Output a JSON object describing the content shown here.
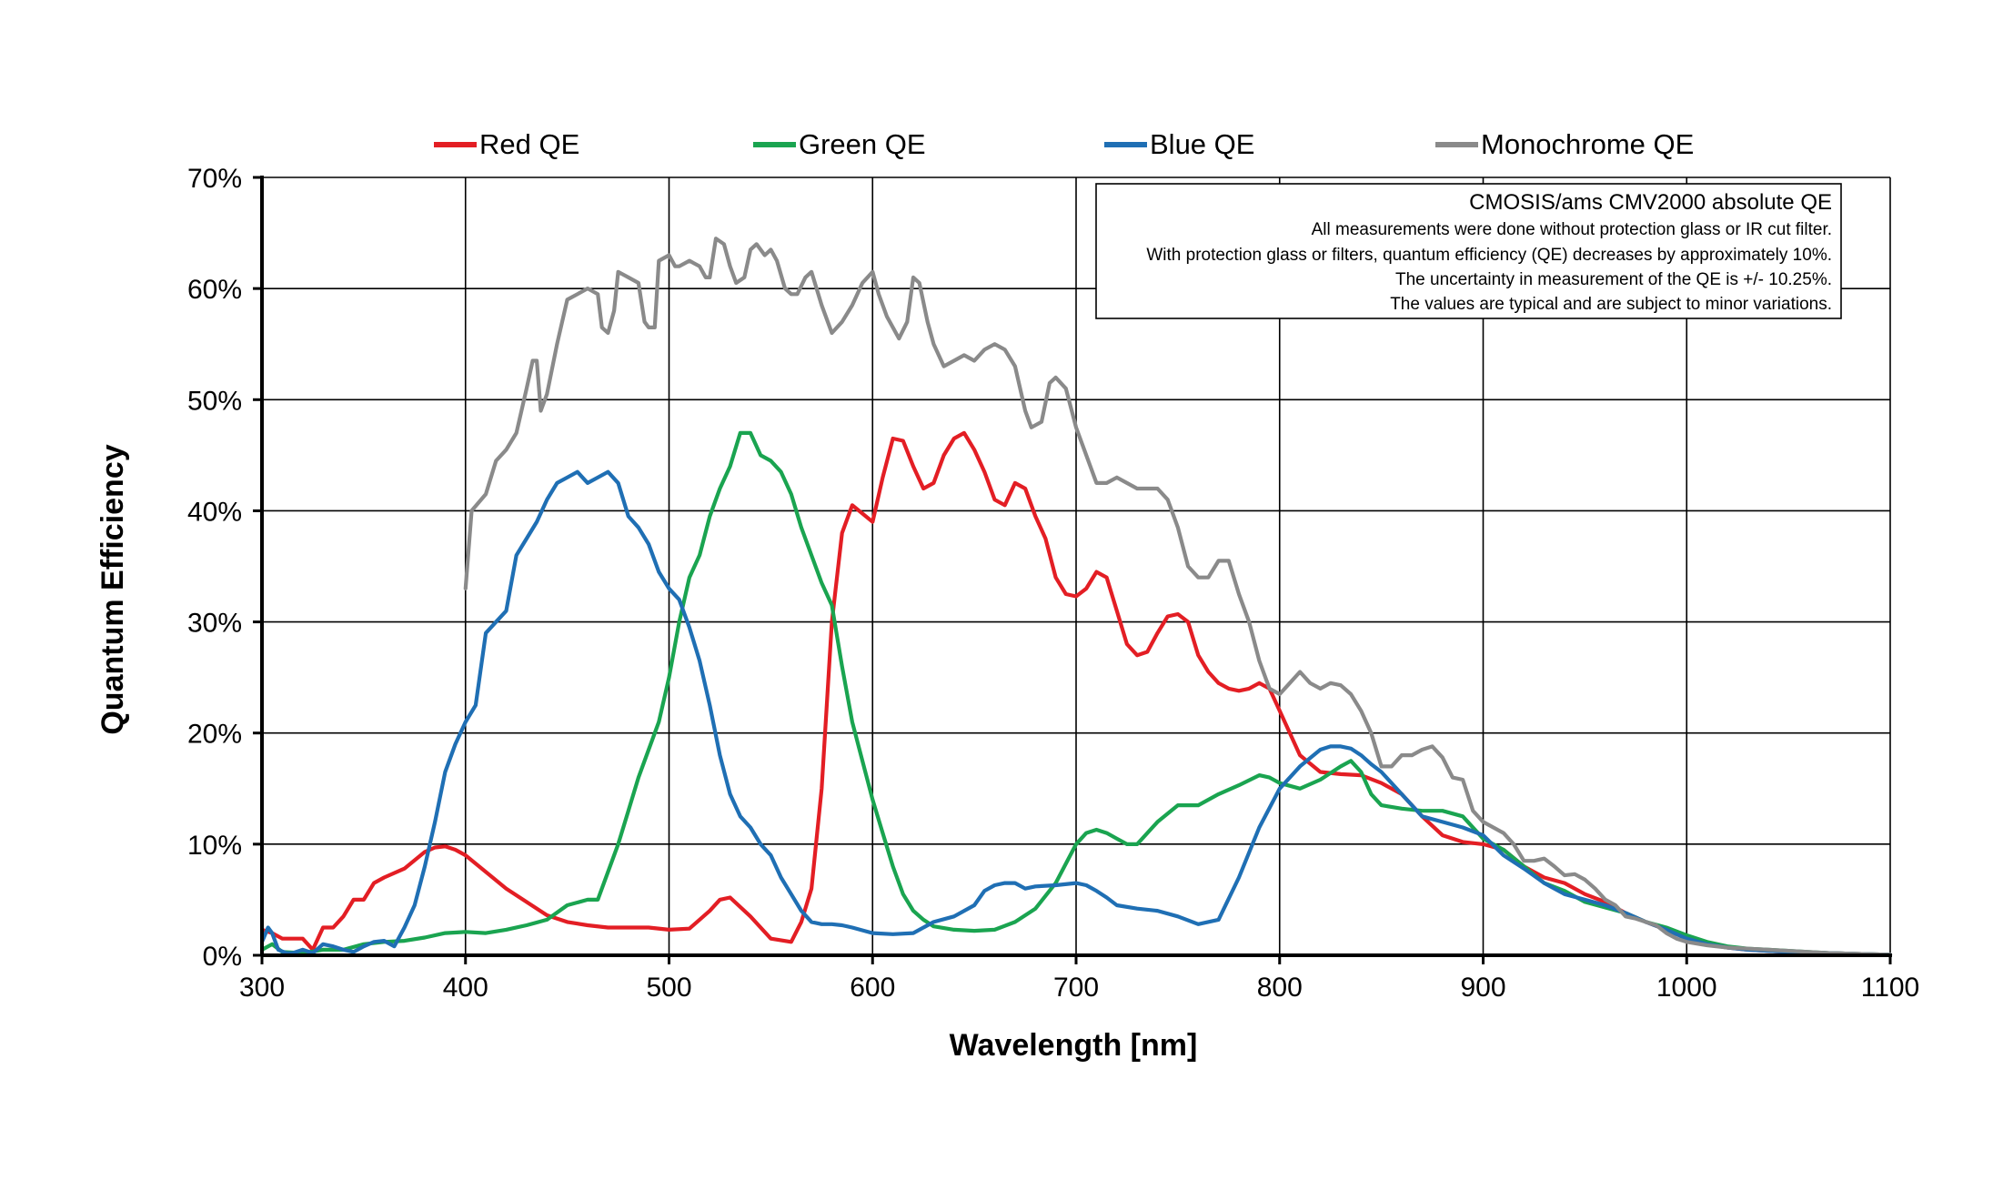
{
  "chart_data": {
    "type": "line",
    "title": "",
    "xlabel": "Wavelength [nm]",
    "ylabel": "Quantum Efficiency",
    "xlim": [
      300,
      1100
    ],
    "ylim": [
      0,
      70
    ],
    "x_ticks": [
      300,
      400,
      500,
      600,
      700,
      800,
      900,
      1000,
      1100
    ],
    "x_tick_labels": [
      "300",
      "400",
      "500",
      "600",
      "700",
      "800",
      "900",
      "1000",
      "1100"
    ],
    "y_ticks": [
      0,
      10,
      20,
      30,
      40,
      50,
      60,
      70
    ],
    "y_tick_labels": [
      "0%",
      "10%",
      "20%",
      "30%",
      "40%",
      "50%",
      "60%",
      "70%"
    ],
    "grid": true,
    "legend_position": "top",
    "annotation": {
      "title": "CMOSIS/ams CMV2000 absolute QE",
      "lines": [
        "All measurements were done without protection glass or IR cut filter.",
        "With protection glass or filters, quantum efficiency (QE) decreases by approximately 10%.",
        "The uncertainty in measurement of the QE is +/- 10.25%.",
        "The values are typical and are subject to minor variations."
      ]
    },
    "series": [
      {
        "name": "Red QE",
        "color": "#e31e24",
        "x": [
          300,
          305,
          310,
          320,
          325,
          330,
          335,
          340,
          345,
          350,
          355,
          360,
          370,
          380,
          385,
          390,
          395,
          400,
          410,
          420,
          430,
          440,
          450,
          460,
          470,
          480,
          490,
          500,
          510,
          520,
          525,
          530,
          540,
          550,
          560,
          565,
          570,
          575,
          580,
          585,
          590,
          600,
          605,
          610,
          615,
          620,
          625,
          630,
          635,
          640,
          645,
          650,
          655,
          660,
          665,
          670,
          675,
          680,
          685,
          690,
          695,
          700,
          705,
          710,
          715,
          720,
          725,
          730,
          735,
          740,
          745,
          750,
          755,
          760,
          765,
          770,
          775,
          780,
          785,
          790,
          795,
          800,
          810,
          820,
          830,
          840,
          850,
          860,
          870,
          880,
          890,
          900,
          910,
          920,
          930,
          940,
          950,
          960,
          970,
          980,
          990,
          1000,
          1010,
          1020,
          1030,
          1040,
          1050,
          1060,
          1070,
          1080,
          1090,
          1100
        ],
        "values": [
          2.3,
          2.0,
          1.5,
          1.5,
          0.5,
          2.5,
          2.5,
          3.5,
          5.0,
          5.0,
          6.5,
          7.0,
          7.8,
          9.3,
          9.7,
          9.8,
          9.5,
          9.0,
          7.5,
          6.0,
          4.8,
          3.6,
          3.0,
          2.7,
          2.5,
          2.5,
          2.5,
          2.3,
          2.4,
          4.0,
          5.0,
          5.2,
          3.5,
          1.5,
          1.2,
          3.0,
          6.0,
          15.0,
          30.0,
          38.0,
          40.5,
          39.0,
          43.0,
          46.5,
          46.3,
          44.0,
          42.0,
          42.5,
          45.0,
          46.5,
          47.0,
          45.5,
          43.5,
          41.0,
          40.5,
          42.5,
          42.0,
          39.5,
          37.5,
          34.0,
          32.5,
          32.3,
          33.0,
          34.5,
          34.0,
          31.0,
          28.0,
          27.0,
          27.3,
          29.0,
          30.5,
          30.7,
          30.0,
          27.0,
          25.5,
          24.5,
          24.0,
          23.8,
          24.0,
          24.5,
          24.0,
          22.0,
          18.0,
          16.5,
          16.3,
          16.2,
          15.5,
          14.5,
          12.5,
          10.8,
          10.2,
          10.0,
          9.5,
          8.0,
          7.0,
          6.5,
          5.5,
          4.8,
          3.8,
          3.0,
          2.3,
          1.5,
          1.0,
          0.7,
          0.5,
          0.4,
          0.3,
          0.25,
          0.2,
          0.15,
          0.1,
          0.05
        ]
      },
      {
        "name": "Green QE",
        "color": "#1aa450",
        "x": [
          300,
          305,
          310,
          320,
          330,
          340,
          350,
          360,
          370,
          380,
          390,
          400,
          410,
          420,
          430,
          440,
          450,
          460,
          465,
          470,
          475,
          480,
          485,
          490,
          495,
          500,
          505,
          510,
          515,
          520,
          525,
          530,
          535,
          540,
          545,
          550,
          555,
          560,
          565,
          570,
          575,
          580,
          585,
          590,
          595,
          600,
          605,
          610,
          615,
          620,
          625,
          630,
          640,
          650,
          660,
          670,
          680,
          690,
          700,
          705,
          710,
          715,
          720,
          725,
          730,
          740,
          750,
          760,
          770,
          780,
          790,
          795,
          800,
          810,
          820,
          830,
          835,
          840,
          845,
          850,
          860,
          870,
          880,
          890,
          900,
          910,
          920,
          930,
          940,
          950,
          960,
          970,
          980,
          990,
          1000,
          1010,
          1020,
          1030,
          1040,
          1050,
          1060,
          1070,
          1080,
          1090,
          1100
        ],
        "values": [
          0.5,
          1.0,
          0.3,
          0.2,
          0.5,
          0.5,
          1.0,
          1.2,
          1.3,
          1.6,
          2.0,
          2.1,
          2.0,
          2.3,
          2.7,
          3.2,
          4.5,
          5.0,
          5.0,
          7.5,
          10.0,
          13.0,
          16.0,
          18.5,
          21.0,
          25.0,
          30.0,
          34.0,
          36.0,
          39.5,
          42.0,
          44.0,
          47.0,
          47.0,
          45.0,
          44.5,
          43.5,
          41.5,
          38.5,
          36.0,
          33.5,
          31.5,
          26.0,
          21.0,
          17.5,
          14.0,
          11.0,
          8.0,
          5.5,
          4.0,
          3.2,
          2.6,
          2.3,
          2.2,
          2.3,
          3.0,
          4.2,
          6.5,
          10.0,
          11.0,
          11.3,
          11.0,
          10.5,
          10.0,
          10.0,
          12.0,
          13.5,
          13.5,
          14.5,
          15.3,
          16.2,
          16.0,
          15.5,
          15.0,
          15.8,
          17.0,
          17.5,
          16.5,
          14.5,
          13.5,
          13.2,
          13.0,
          13.0,
          12.5,
          10.5,
          9.5,
          8.0,
          6.5,
          5.8,
          4.8,
          4.3,
          3.8,
          3.0,
          2.5,
          1.8,
          1.2,
          0.8,
          0.6,
          0.5,
          0.4,
          0.3,
          0.2,
          0.15,
          0.1,
          0.05
        ]
      },
      {
        "name": "Blue QE",
        "color": "#1f6fb4",
        "x": [
          300,
          303,
          305,
          308,
          312,
          315,
          320,
          325,
          330,
          335,
          340,
          345,
          350,
          355,
          360,
          365,
          370,
          375,
          380,
          385,
          390,
          395,
          400,
          405,
          410,
          415,
          420,
          425,
          430,
          435,
          440,
          445,
          450,
          455,
          460,
          465,
          470,
          475,
          480,
          485,
          490,
          495,
          500,
          505,
          510,
          515,
          520,
          525,
          530,
          535,
          540,
          545,
          550,
          555,
          560,
          565,
          570,
          575,
          580,
          585,
          590,
          600,
          610,
          620,
          630,
          640,
          650,
          655,
          660,
          665,
          670,
          675,
          680,
          690,
          700,
          705,
          710,
          715,
          720,
          730,
          740,
          750,
          760,
          770,
          780,
          790,
          800,
          810,
          820,
          825,
          830,
          835,
          840,
          845,
          850,
          860,
          870,
          880,
          890,
          900,
          910,
          920,
          930,
          940,
          950,
          960,
          970,
          980,
          990,
          1000,
          1010,
          1020,
          1030,
          1040,
          1050,
          1060,
          1070,
          1080,
          1090,
          1100
        ],
        "values": [
          1.2,
          2.5,
          2.0,
          0.5,
          0.2,
          0.2,
          0.5,
          0.2,
          1.0,
          0.8,
          0.5,
          0.3,
          0.8,
          1.2,
          1.3,
          0.8,
          2.5,
          4.5,
          8.0,
          12.0,
          16.5,
          19.0,
          21.0,
          22.5,
          29.0,
          30.0,
          31.0,
          36.0,
          37.5,
          39.0,
          41.0,
          42.5,
          43.0,
          43.5,
          42.5,
          43.0,
          43.5,
          42.5,
          39.5,
          38.5,
          37.0,
          34.5,
          33.0,
          32.0,
          29.5,
          26.5,
          22.5,
          18.0,
          14.5,
          12.5,
          11.5,
          10.0,
          9.0,
          7.0,
          5.5,
          4.0,
          3.0,
          2.8,
          2.8,
          2.7,
          2.5,
          2.0,
          1.9,
          2.0,
          3.0,
          3.5,
          4.5,
          5.8,
          6.3,
          6.5,
          6.5,
          6.0,
          6.2,
          6.3,
          6.5,
          6.3,
          5.8,
          5.2,
          4.5,
          4.2,
          4.0,
          3.5,
          2.8,
          3.2,
          7.0,
          11.5,
          15.0,
          17.0,
          18.5,
          18.8,
          18.8,
          18.6,
          18.0,
          17.2,
          16.5,
          14.5,
          12.5,
          12.0,
          11.5,
          10.8,
          9.0,
          7.8,
          6.5,
          5.5,
          5.0,
          4.5,
          3.8,
          3.0,
          2.3,
          1.5,
          1.0,
          0.7,
          0.5,
          0.4,
          0.3,
          0.25,
          0.2,
          0.15,
          0.1,
          0.05
        ]
      },
      {
        "name": "Monochrome QE",
        "color": "#8a8a8a",
        "x": [
          400,
          403,
          410,
          415,
          420,
          425,
          430,
          433,
          435,
          437,
          440,
          445,
          450,
          455,
          460,
          465,
          467,
          470,
          473,
          475,
          480,
          485,
          488,
          490,
          493,
          495,
          500,
          503,
          505,
          510,
          515,
          518,
          520,
          523,
          527,
          530,
          533,
          537,
          540,
          543,
          547,
          550,
          553,
          557,
          560,
          563,
          567,
          570,
          575,
          580,
          585,
          590,
          595,
          600,
          603,
          607,
          610,
          613,
          617,
          620,
          623,
          627,
          630,
          635,
          640,
          645,
          650,
          655,
          660,
          665,
          670,
          675,
          678,
          683,
          687,
          690,
          695,
          700,
          705,
          710,
          715,
          720,
          725,
          730,
          735,
          740,
          745,
          750,
          755,
          760,
          765,
          770,
          775,
          780,
          785,
          790,
          795,
          800,
          805,
          810,
          815,
          820,
          825,
          830,
          835,
          840,
          845,
          850,
          855,
          860,
          865,
          870,
          875,
          880,
          885,
          890,
          895,
          900,
          905,
          910,
          915,
          920,
          925,
          930,
          935,
          940,
          945,
          950,
          955,
          960,
          965,
          970,
          975,
          980,
          985,
          990,
          995,
          1000,
          1010,
          1020,
          1030,
          1040,
          1050,
          1060,
          1070,
          1080,
          1090,
          1100
        ],
        "values": [
          33.0,
          40.0,
          41.5,
          44.5,
          45.5,
          47.0,
          51.0,
          53.5,
          53.5,
          49.0,
          50.5,
          55.0,
          59.0,
          59.5,
          60.0,
          59.5,
          56.5,
          56.0,
          58.0,
          61.5,
          61.0,
          60.5,
          57.0,
          56.5,
          56.5,
          62.5,
          63.0,
          62.0,
          62.0,
          62.5,
          62.0,
          61.0,
          61.0,
          64.5,
          64.0,
          62.0,
          60.5,
          61.0,
          63.5,
          64.0,
          63.0,
          63.5,
          62.5,
          60.0,
          59.5,
          59.5,
          61.0,
          61.5,
          58.5,
          56.0,
          57.0,
          58.5,
          60.5,
          61.5,
          59.5,
          57.5,
          56.5,
          55.5,
          57.0,
          61.0,
          60.5,
          57.0,
          55.0,
          53.0,
          53.5,
          54.0,
          53.5,
          54.5,
          55.0,
          54.5,
          53.0,
          49.0,
          47.5,
          48.0,
          51.5,
          52.0,
          51.0,
          47.5,
          45.0,
          42.5,
          42.5,
          43.0,
          42.5,
          42.0,
          42.0,
          42.0,
          41.0,
          38.5,
          35.0,
          34.0,
          34.0,
          35.5,
          35.5,
          32.5,
          30.0,
          26.5,
          24.0,
          23.5,
          24.5,
          25.5,
          24.5,
          24.0,
          24.5,
          24.3,
          23.5,
          22.0,
          20.0,
          17.0,
          17.0,
          18.0,
          18.0,
          18.5,
          18.8,
          17.8,
          16.0,
          15.8,
          13.0,
          12.0,
          11.5,
          11.0,
          10.0,
          8.5,
          8.5,
          8.7,
          8.0,
          7.2,
          7.3,
          6.8,
          6.0,
          5.0,
          4.5,
          3.5,
          3.3,
          3.0,
          2.7,
          2.0,
          1.5,
          1.2,
          0.9,
          0.7,
          0.6,
          0.5,
          0.4,
          0.3,
          0.2,
          0.15,
          0.1,
          0.05
        ]
      }
    ]
  }
}
